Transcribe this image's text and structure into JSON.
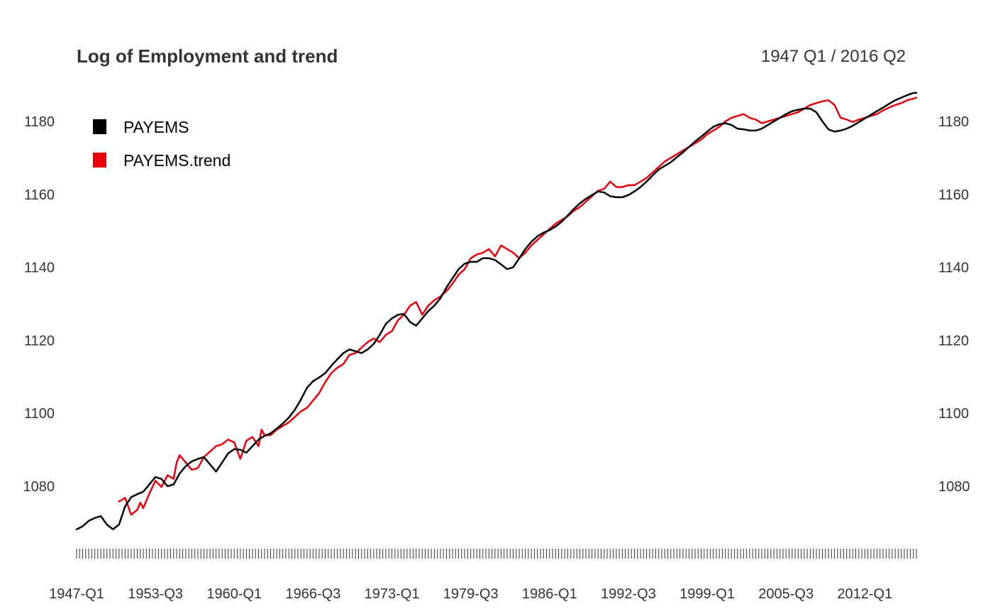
{
  "chart_data": {
    "type": "line",
    "title": "Log of Employment and trend",
    "date_range": "1947 Q1 / 2016 Q2",
    "x_start": "1947-Q1",
    "x_end": "2016-Q2",
    "x_tick_labels": [
      "1947-Q1",
      "1953-Q3",
      "1960-Q1",
      "1966-Q3",
      "1973-Q1",
      "1979-Q3",
      "1986-Q1",
      "1992-Q3",
      "1999-Q1",
      "2005-Q3",
      "2012-Q1"
    ],
    "y_ticks": [
      1080,
      1100,
      1120,
      1140,
      1160,
      1180
    ],
    "ylim": [
      1062,
      1190
    ],
    "grid": false,
    "legend_position": "top-left",
    "series": [
      {
        "name": "PAYEMS",
        "color": "#000000",
        "points": [
          [
            "1947-Q1",
            1068.2
          ],
          [
            "1947-Q3",
            1069.0
          ],
          [
            "1948-Q1",
            1070.5
          ],
          [
            "1948-Q3",
            1071.3
          ],
          [
            "1949-Q1",
            1071.8
          ],
          [
            "1949-Q3",
            1069.5
          ],
          [
            "1950-Q1",
            1068.2
          ],
          [
            "1950-Q3",
            1069.5
          ],
          [
            "1951-Q1",
            1074.5
          ],
          [
            "1951-Q3",
            1077.0
          ],
          [
            "1952-Q1",
            1077.8
          ],
          [
            "1952-Q3",
            1078.5
          ],
          [
            "1953-Q1",
            1080.5
          ],
          [
            "1953-Q3",
            1082.5
          ],
          [
            "1954-Q1",
            1082.0
          ],
          [
            "1954-Q3",
            1080.0
          ],
          [
            "1955-Q1",
            1080.5
          ],
          [
            "1955-Q3",
            1083.5
          ],
          [
            "1956-Q1",
            1085.5
          ],
          [
            "1956-Q3",
            1086.8
          ],
          [
            "1957-Q1",
            1087.5
          ],
          [
            "1957-Q3",
            1088.0
          ],
          [
            "1958-Q1",
            1086.0
          ],
          [
            "1958-Q3",
            1084.0
          ],
          [
            "1959-Q1",
            1086.5
          ],
          [
            "1959-Q3",
            1089.0
          ],
          [
            "1960-Q1",
            1090.2
          ],
          [
            "1960-Q3",
            1090.0
          ],
          [
            "1961-Q1",
            1089.2
          ],
          [
            "1961-Q3",
            1091.0
          ],
          [
            "1962-Q1",
            1092.8
          ],
          [
            "1962-Q3",
            1093.8
          ],
          [
            "1963-Q1",
            1094.5
          ],
          [
            "1963-Q3",
            1095.8
          ],
          [
            "1964-Q1",
            1097.2
          ],
          [
            "1964-Q3",
            1098.8
          ],
          [
            "1965-Q1",
            1101.0
          ],
          [
            "1965-Q3",
            1103.8
          ],
          [
            "1966-Q1",
            1107.0
          ],
          [
            "1966-Q3",
            1108.8
          ],
          [
            "1967-Q1",
            1109.8
          ],
          [
            "1967-Q3",
            1111.0
          ],
          [
            "1968-Q1",
            1113.0
          ],
          [
            "1968-Q3",
            1114.8
          ],
          [
            "1969-Q1",
            1116.5
          ],
          [
            "1969-Q3",
            1117.5
          ],
          [
            "1970-Q1",
            1117.0
          ],
          [
            "1970-Q3",
            1116.5
          ],
          [
            "1971-Q1",
            1117.5
          ],
          [
            "1971-Q3",
            1119.0
          ],
          [
            "1972-Q1",
            1121.5
          ],
          [
            "1972-Q3",
            1124.5
          ],
          [
            "1973-Q1",
            1126.0
          ],
          [
            "1973-Q3",
            1127.0
          ],
          [
            "1974-Q1",
            1127.2
          ],
          [
            "1974-Q3",
            1125.0
          ],
          [
            "1975-Q1",
            1124.0
          ],
          [
            "1975-Q3",
            1126.0
          ],
          [
            "1976-Q1",
            1128.0
          ],
          [
            "1976-Q3",
            1129.5
          ],
          [
            "1977-Q1",
            1131.5
          ],
          [
            "1977-Q3",
            1134.5
          ],
          [
            "1978-Q1",
            1137.0
          ],
          [
            "1978-Q3",
            1139.5
          ],
          [
            "1979-Q1",
            1141.0
          ],
          [
            "1979-Q3",
            1141.5
          ],
          [
            "1980-Q1",
            1141.5
          ],
          [
            "1980-Q3",
            1142.5
          ],
          [
            "1981-Q1",
            1142.5
          ],
          [
            "1981-Q3",
            1142.0
          ],
          [
            "1982-Q1",
            1140.8
          ],
          [
            "1982-Q3",
            1139.5
          ],
          [
            "1983-Q1",
            1140.0
          ],
          [
            "1983-Q3",
            1142.5
          ],
          [
            "1984-Q1",
            1145.0
          ],
          [
            "1984-Q3",
            1147.0
          ],
          [
            "1985-Q1",
            1148.5
          ],
          [
            "1985-Q3",
            1149.5
          ],
          [
            "1986-Q1",
            1150.2
          ],
          [
            "1986-Q3",
            1151.2
          ],
          [
            "1987-Q1",
            1152.5
          ],
          [
            "1987-Q3",
            1154.2
          ],
          [
            "1988-Q1",
            1156.0
          ],
          [
            "1988-Q3",
            1157.5
          ],
          [
            "1989-Q1",
            1158.8
          ],
          [
            "1989-Q3",
            1159.8
          ],
          [
            "1990-Q1",
            1160.8
          ],
          [
            "1990-Q3",
            1160.5
          ],
          [
            "1991-Q1",
            1159.5
          ],
          [
            "1991-Q3",
            1159.2
          ],
          [
            "1992-Q1",
            1159.2
          ],
          [
            "1992-Q3",
            1159.8
          ],
          [
            "1993-Q1",
            1160.8
          ],
          [
            "1993-Q3",
            1162.0
          ],
          [
            "1994-Q1",
            1163.5
          ],
          [
            "1994-Q3",
            1165.2
          ],
          [
            "1995-Q1",
            1166.8
          ],
          [
            "1995-Q3",
            1167.8
          ],
          [
            "1996-Q1",
            1168.8
          ],
          [
            "1996-Q3",
            1170.2
          ],
          [
            "1997-Q1",
            1171.5
          ],
          [
            "1997-Q3",
            1173.0
          ],
          [
            "1998-Q1",
            1174.5
          ],
          [
            "1998-Q3",
            1175.8
          ],
          [
            "1999-Q1",
            1177.2
          ],
          [
            "1999-Q3",
            1178.5
          ],
          [
            "2000-Q1",
            1179.2
          ],
          [
            "2000-Q3",
            1179.5
          ],
          [
            "2001-Q1",
            1179.0
          ],
          [
            "2001-Q3",
            1178.0
          ],
          [
            "2002-Q1",
            1177.8
          ],
          [
            "2002-Q3",
            1177.5
          ],
          [
            "2003-Q1",
            1177.5
          ],
          [
            "2003-Q3",
            1178.0
          ],
          [
            "2004-Q1",
            1179.0
          ],
          [
            "2004-Q3",
            1180.0
          ],
          [
            "2005-Q1",
            1181.0
          ],
          [
            "2005-Q3",
            1182.0
          ],
          [
            "2006-Q1",
            1182.8
          ],
          [
            "2006-Q3",
            1183.2
          ],
          [
            "2007-Q1",
            1183.5
          ],
          [
            "2007-Q3",
            1183.5
          ],
          [
            "2008-Q1",
            1182.5
          ],
          [
            "2008-Q3",
            1180.0
          ],
          [
            "2009-Q1",
            1177.8
          ],
          [
            "2009-Q3",
            1177.2
          ],
          [
            "2010-Q1",
            1177.5
          ],
          [
            "2010-Q3",
            1178.0
          ],
          [
            "2011-Q1",
            1178.8
          ],
          [
            "2011-Q3",
            1179.8
          ],
          [
            "2012-Q1",
            1180.8
          ],
          [
            "2012-Q3",
            1181.8
          ],
          [
            "2013-Q1",
            1182.8
          ],
          [
            "2013-Q3",
            1183.8
          ],
          [
            "2014-Q1",
            1184.8
          ],
          [
            "2014-Q3",
            1185.8
          ],
          [
            "2015-Q1",
            1186.5
          ],
          [
            "2015-Q3",
            1187.2
          ],
          [
            "2016-Q1",
            1187.8
          ],
          [
            "2016-Q2",
            1187.8
          ]
        ]
      },
      {
        "name": "PAYEMS.trend",
        "color": "#e8000b",
        "points": [
          [
            "1950-Q3",
            1075.8
          ],
          [
            "1951-Q1",
            1076.8
          ],
          [
            "1951-Q2",
            1074.5
          ],
          [
            "1951-Q3",
            1072.2
          ],
          [
            "1952-Q1",
            1073.5
          ],
          [
            "1952-Q2",
            1075.5
          ],
          [
            "1952-Q3",
            1074.0
          ],
          [
            "1953-Q1",
            1078.0
          ],
          [
            "1953-Q3",
            1081.5
          ],
          [
            "1954-Q1",
            1079.8
          ],
          [
            "1954-Q3",
            1083.0
          ],
          [
            "1955-Q1",
            1082.0
          ],
          [
            "1955-Q2",
            1086.5
          ],
          [
            "1955-Q3",
            1088.5
          ],
          [
            "1956-Q1",
            1086.5
          ],
          [
            "1956-Q3",
            1084.5
          ],
          [
            "1957-Q1",
            1085.0
          ],
          [
            "1957-Q3",
            1088.0
          ],
          [
            "1958-Q1",
            1089.5
          ],
          [
            "1958-Q3",
            1091.0
          ],
          [
            "1959-Q1",
            1091.5
          ],
          [
            "1959-Q3",
            1092.8
          ],
          [
            "1960-Q1",
            1092.0
          ],
          [
            "1960-Q3",
            1087.5
          ],
          [
            "1961-Q1",
            1092.5
          ],
          [
            "1961-Q3",
            1093.5
          ],
          [
            "1962-Q1",
            1091.0
          ],
          [
            "1962-Q2",
            1095.5
          ],
          [
            "1962-Q3",
            1094.0
          ],
          [
            "1963-Q1",
            1094.0
          ],
          [
            "1963-Q3",
            1095.5
          ],
          [
            "1964-Q1",
            1096.5
          ],
          [
            "1964-Q3",
            1097.5
          ],
          [
            "1965-Q1",
            1099.0
          ],
          [
            "1965-Q3",
            1100.5
          ],
          [
            "1966-Q1",
            1101.5
          ],
          [
            "1966-Q3",
            1103.5
          ],
          [
            "1967-Q1",
            1105.5
          ],
          [
            "1967-Q3",
            1108.5
          ],
          [
            "1968-Q1",
            1111.0
          ],
          [
            "1968-Q3",
            1112.5
          ],
          [
            "1969-Q1",
            1113.5
          ],
          [
            "1969-Q3",
            1116.0
          ],
          [
            "1970-Q1",
            1116.5
          ],
          [
            "1970-Q3",
            1118.0
          ],
          [
            "1971-Q1",
            1119.5
          ],
          [
            "1971-Q3",
            1120.5
          ],
          [
            "1972-Q1",
            1119.5
          ],
          [
            "1972-Q3",
            1121.5
          ],
          [
            "1973-Q1",
            1122.5
          ],
          [
            "1973-Q3",
            1125.5
          ],
          [
            "1974-Q1",
            1127.0
          ],
          [
            "1974-Q3",
            1129.5
          ],
          [
            "1975-Q1",
            1130.5
          ],
          [
            "1975-Q3",
            1127.0
          ],
          [
            "1976-Q1",
            1129.5
          ],
          [
            "1976-Q3",
            1131.0
          ],
          [
            "1977-Q1",
            1132.0
          ],
          [
            "1977-Q3",
            1133.5
          ],
          [
            "1978-Q1",
            1135.5
          ],
          [
            "1978-Q3",
            1138.0
          ],
          [
            "1979-Q1",
            1139.5
          ],
          [
            "1979-Q3",
            1142.5
          ],
          [
            "1980-Q1",
            1143.5
          ],
          [
            "1980-Q3",
            1144.0
          ],
          [
            "1981-Q1",
            1145.0
          ],
          [
            "1981-Q3",
            1143.0
          ],
          [
            "1982-Q1",
            1146.0
          ],
          [
            "1982-Q3",
            1145.0
          ],
          [
            "1983-Q1",
            1144.0
          ],
          [
            "1983-Q3",
            1142.5
          ],
          [
            "1984-Q1",
            1144.0
          ],
          [
            "1984-Q3",
            1146.0
          ],
          [
            "1985-Q1",
            1147.5
          ],
          [
            "1985-Q3",
            1149.0
          ],
          [
            "1986-Q1",
            1150.5
          ],
          [
            "1986-Q3",
            1152.0
          ],
          [
            "1987-Q1",
            1153.0
          ],
          [
            "1987-Q3",
            1154.0
          ],
          [
            "1988-Q1",
            1155.5
          ],
          [
            "1988-Q3",
            1156.5
          ],
          [
            "1989-Q1",
            1158.0
          ],
          [
            "1989-Q3",
            1159.5
          ],
          [
            "1990-Q1",
            1161.0
          ],
          [
            "1990-Q3",
            1161.5
          ],
          [
            "1991-Q1",
            1163.5
          ],
          [
            "1991-Q3",
            1162.0
          ],
          [
            "1992-Q1",
            1162.0
          ],
          [
            "1992-Q3",
            1162.5
          ],
          [
            "1993-Q1",
            1162.5
          ],
          [
            "1993-Q3",
            1163.5
          ],
          [
            "1994-Q1",
            1164.5
          ],
          [
            "1994-Q3",
            1166.0
          ],
          [
            "1995-Q1",
            1167.5
          ],
          [
            "1995-Q3",
            1169.0
          ],
          [
            "1996-Q1",
            1170.0
          ],
          [
            "1996-Q3",
            1171.0
          ],
          [
            "1997-Q1",
            1172.0
          ],
          [
            "1997-Q3",
            1173.0
          ],
          [
            "1998-Q1",
            1174.0
          ],
          [
            "1998-Q3",
            1175.0
          ],
          [
            "1999-Q1",
            1176.5
          ],
          [
            "1999-Q3",
            1177.5
          ],
          [
            "2000-Q1",
            1178.5
          ],
          [
            "2000-Q3",
            1180.0
          ],
          [
            "2001-Q1",
            1181.0
          ],
          [
            "2001-Q3",
            1181.5
          ],
          [
            "2002-Q1",
            1182.0
          ],
          [
            "2002-Q3",
            1181.0
          ],
          [
            "2003-Q1",
            1180.5
          ],
          [
            "2003-Q3",
            1179.5
          ],
          [
            "2004-Q1",
            1180.0
          ],
          [
            "2004-Q3",
            1180.5
          ],
          [
            "2005-Q1",
            1181.0
          ],
          [
            "2005-Q3",
            1181.5
          ],
          [
            "2006-Q1",
            1182.0
          ],
          [
            "2006-Q3",
            1182.5
          ],
          [
            "2007-Q1",
            1183.5
          ],
          [
            "2007-Q3",
            1184.5
          ],
          [
            "2008-Q1",
            1185.0
          ],
          [
            "2008-Q3",
            1185.5
          ],
          [
            "2009-Q1",
            1185.8
          ],
          [
            "2009-Q3",
            1184.5
          ],
          [
            "2010-Q1",
            1181.0
          ],
          [
            "2010-Q3",
            1180.5
          ],
          [
            "2011-Q1",
            1179.8
          ],
          [
            "2011-Q3",
            1180.5
          ],
          [
            "2012-Q1",
            1181.0
          ],
          [
            "2012-Q3",
            1181.5
          ],
          [
            "2013-Q1",
            1182.0
          ],
          [
            "2013-Q3",
            1183.0
          ],
          [
            "2014-Q1",
            1183.8
          ],
          [
            "2014-Q3",
            1184.5
          ],
          [
            "2015-Q1",
            1185.0
          ],
          [
            "2015-Q3",
            1185.8
          ],
          [
            "2016-Q1",
            1186.2
          ],
          [
            "2016-Q2",
            1186.5
          ]
        ]
      }
    ]
  }
}
